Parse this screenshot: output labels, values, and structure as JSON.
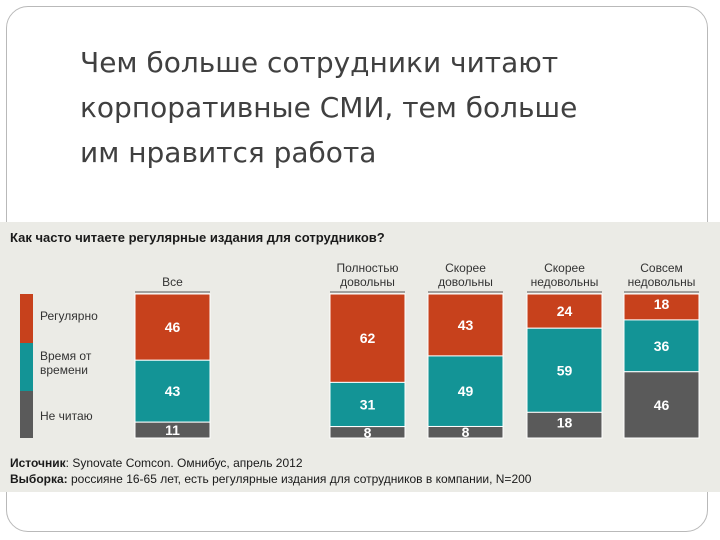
{
  "slide": {
    "title": "Чем больше сотрудники читают\nкорпоративные СМИ, тем больше\nим нравится работа"
  },
  "colors": {
    "regular": "#c7411c",
    "sometimes": "#139496",
    "never": "#5a5a5a",
    "panel": "#ebebe6"
  },
  "chart_data": {
    "type": "bar",
    "stacked": true,
    "percent": true,
    "title": "Как часто читаете регулярные издания для сотрудников?",
    "categories": [
      "Все",
      "Полностью довольны",
      "Скорее довольны",
      "Скорее недовольны",
      "Совсем недовольны"
    ],
    "series": [
      {
        "name": "Регулярно",
        "values": [
          46,
          62,
          43,
          24,
          18
        ]
      },
      {
        "name": "Время от времени",
        "values": [
          43,
          31,
          49,
          59,
          36
        ]
      },
      {
        "name": "Не читаю",
        "values": [
          11,
          8,
          8,
          18,
          46
        ]
      }
    ],
    "ylim": [
      0,
      100
    ],
    "legend_position": "left"
  },
  "source": {
    "label": "Источник",
    "text": ": Synovate Comcon. Омнибус, апрель 2012",
    "sample_label": "Выборка:",
    "sample_text": " россияне 16-65 лет, есть регулярные издания для сотрудников в компании, N=200"
  }
}
